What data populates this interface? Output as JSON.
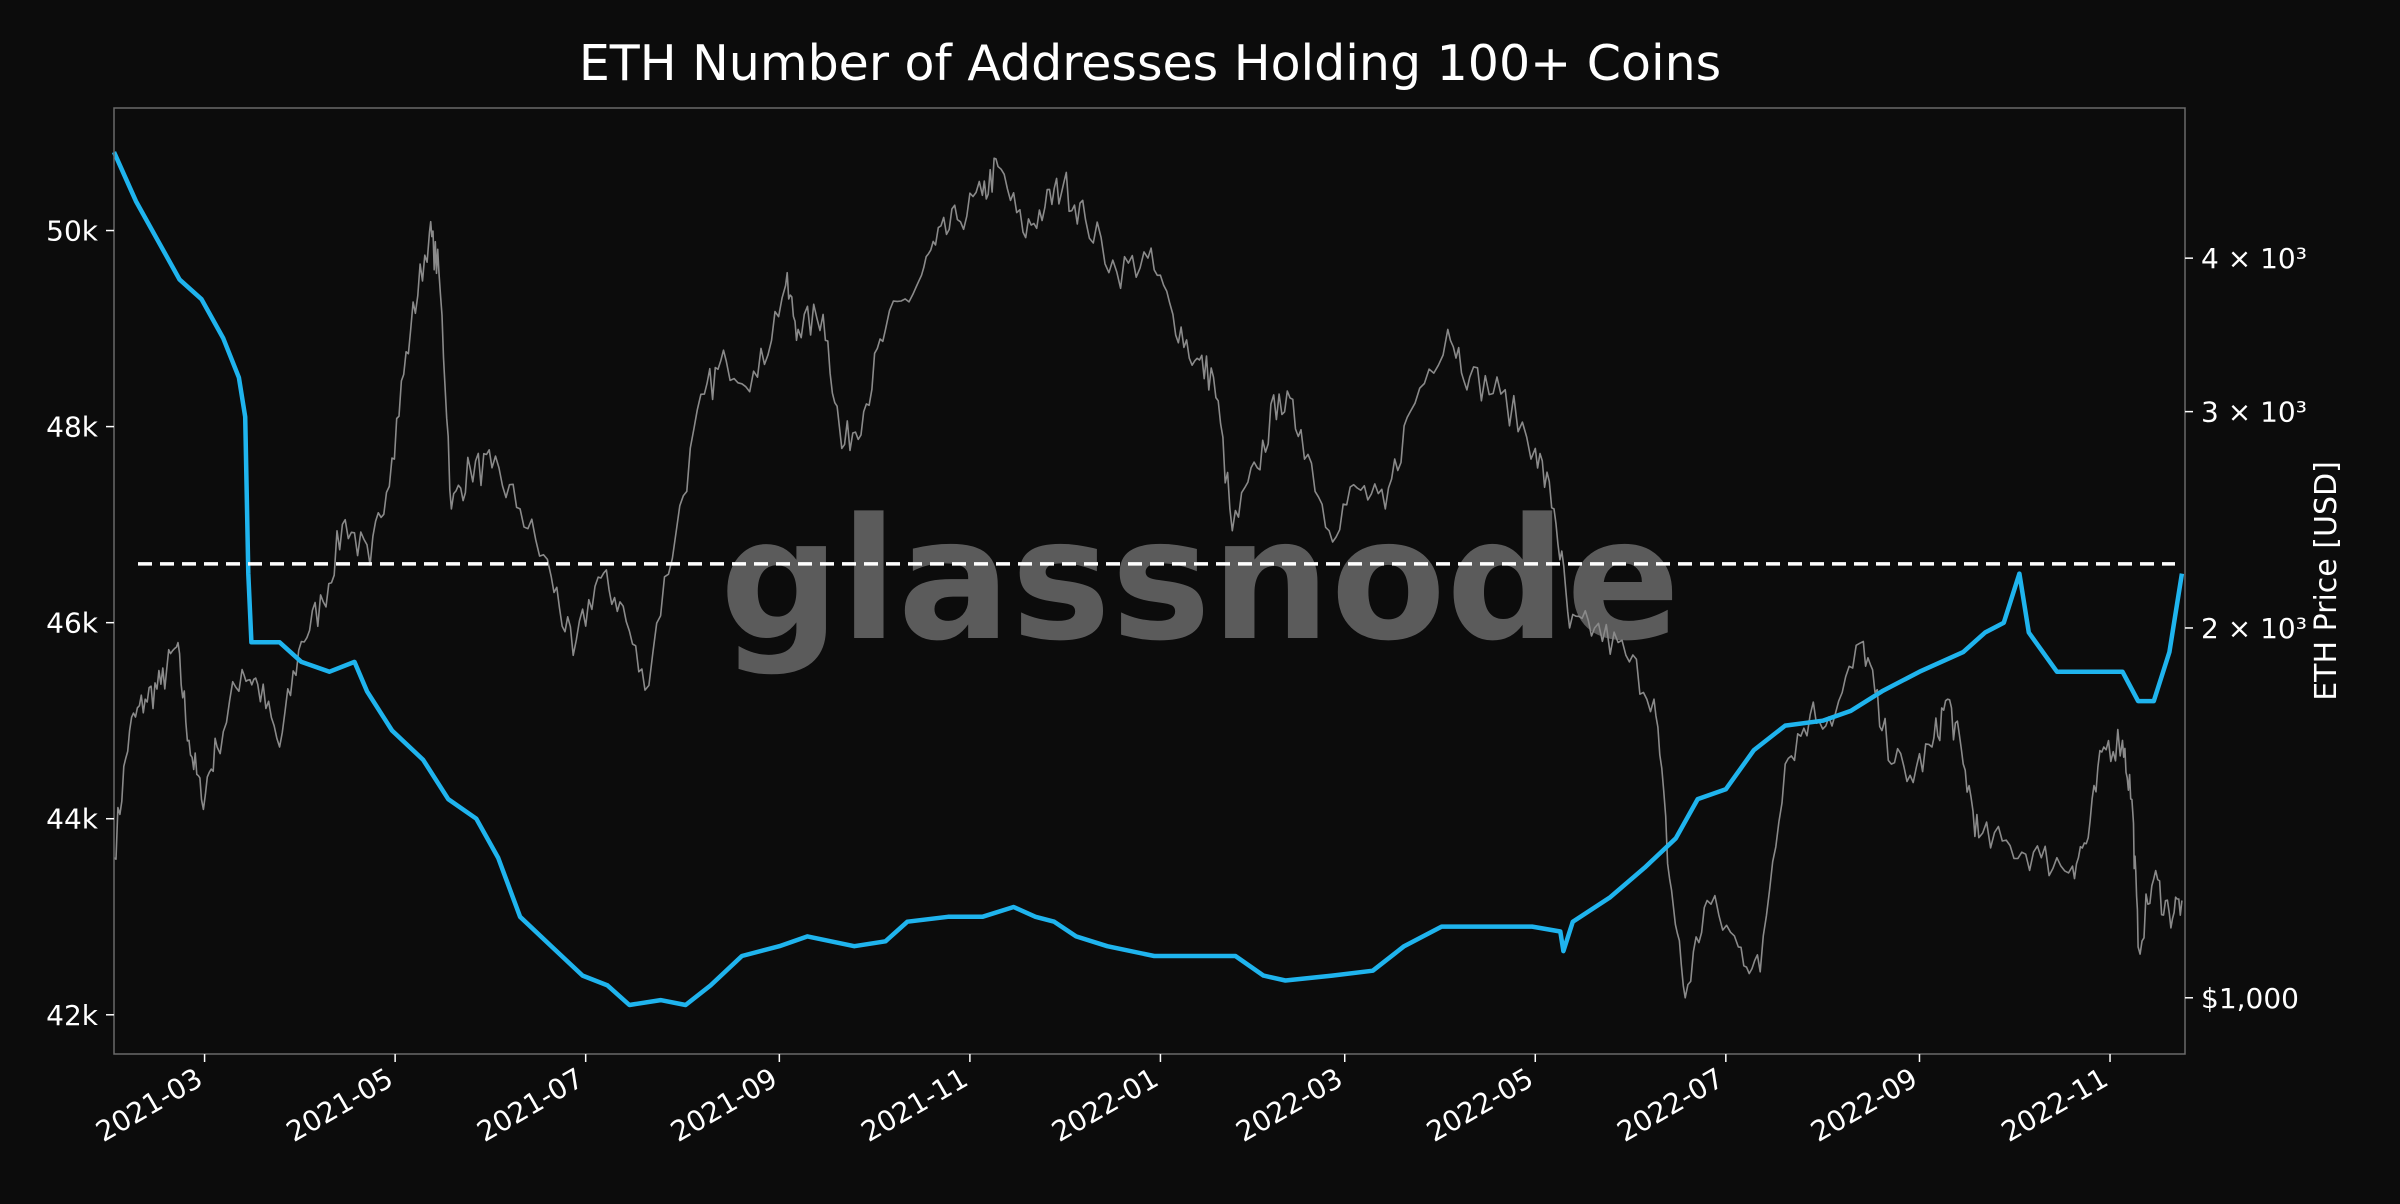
{
  "chart_data": {
    "type": "line",
    "title": "ETH Number of Addresses Holding 100+ Coins",
    "xlabel": "",
    "ylabel_left": "",
    "ylabel_right": "ETH Price [USD]",
    "watermark": "glassnode",
    "x_range": [
      "2021-01-31",
      "2022-11-25"
    ],
    "x_ticks": [
      "2021-03-01",
      "2021-05-01",
      "2021-07-01",
      "2021-09-01",
      "2021-11-01",
      "2022-01-01",
      "2022-03-01",
      "2022-05-01",
      "2022-07-01",
      "2022-09-01",
      "2022-11-01"
    ],
    "x_tick_labels": [
      "2021-03",
      "2021-05",
      "2021-07",
      "2021-09",
      "2021-11",
      "2022-01",
      "2022-03",
      "2022-05",
      "2022-07",
      "2022-09",
      "2022-11"
    ],
    "y_left_ticks": [
      42000,
      44000,
      46000,
      48000,
      50000
    ],
    "y_left_tick_labels": [
      "42k",
      "44k",
      "46k",
      "48k",
      "50k"
    ],
    "y_left_range": [
      41600,
      51250
    ],
    "y_right_scale": "log",
    "y_right_range": [
      900,
      5300
    ],
    "y_right_ticks": [
      1000,
      2000,
      3000,
      4000
    ],
    "y_right_tick_labels": [
      "$1,000",
      "2 × 10³",
      "3 × 10³",
      "4 × 10³"
    ],
    "reference_line": {
      "y": 46600,
      "style": "dashed",
      "color": "#ffffff"
    },
    "grid": false,
    "colors": {
      "background": "#0c0c0c",
      "addresses": "#1fb4ee",
      "price": "#8a8a8a",
      "frame": "#6a6a6a",
      "text": "#ffffff"
    },
    "series": [
      {
        "name": "Addresses Holding 100+ Coins",
        "axis": "left",
        "color": "#1fb4ee",
        "points": [
          [
            "2021-01-31",
            50800
          ],
          [
            "2021-02-07",
            50300
          ],
          [
            "2021-02-14",
            49900
          ],
          [
            "2021-02-21",
            49500
          ],
          [
            "2021-02-28",
            49300
          ],
          [
            "2021-03-07",
            48900
          ],
          [
            "2021-03-12",
            48500
          ],
          [
            "2021-03-14",
            48100
          ],
          [
            "2021-03-15",
            46500
          ],
          [
            "2021-03-16",
            45800
          ],
          [
            "2021-03-25",
            45800
          ],
          [
            "2021-04-01",
            45600
          ],
          [
            "2021-04-10",
            45500
          ],
          [
            "2021-04-18",
            45600
          ],
          [
            "2021-04-22",
            45300
          ],
          [
            "2021-04-30",
            44900
          ],
          [
            "2021-05-10",
            44600
          ],
          [
            "2021-05-18",
            44200
          ],
          [
            "2021-05-27",
            44000
          ],
          [
            "2021-06-03",
            43600
          ],
          [
            "2021-06-10",
            43000
          ],
          [
            "2021-06-20",
            42700
          ],
          [
            "2021-06-30",
            42400
          ],
          [
            "2021-07-08",
            42300
          ],
          [
            "2021-07-15",
            42100
          ],
          [
            "2021-07-25",
            42150
          ],
          [
            "2021-08-02",
            42100
          ],
          [
            "2021-08-10",
            42300
          ],
          [
            "2021-08-20",
            42600
          ],
          [
            "2021-09-01",
            42700
          ],
          [
            "2021-09-10",
            42800
          ],
          [
            "2021-09-25",
            42700
          ],
          [
            "2021-10-05",
            42750
          ],
          [
            "2021-10-12",
            42950
          ],
          [
            "2021-10-25",
            43000
          ],
          [
            "2021-11-05",
            43000
          ],
          [
            "2021-11-15",
            43100
          ],
          [
            "2021-11-22",
            43000
          ],
          [
            "2021-11-28",
            42950
          ],
          [
            "2021-12-05",
            42800
          ],
          [
            "2021-12-15",
            42700
          ],
          [
            "2021-12-30",
            42600
          ],
          [
            "2022-01-10",
            42600
          ],
          [
            "2022-01-25",
            42600
          ],
          [
            "2022-02-03",
            42400
          ],
          [
            "2022-02-10",
            42350
          ],
          [
            "2022-02-25",
            42400
          ],
          [
            "2022-03-10",
            42450
          ],
          [
            "2022-03-20",
            42700
          ],
          [
            "2022-04-01",
            42900
          ],
          [
            "2022-04-15",
            42900
          ],
          [
            "2022-04-30",
            42900
          ],
          [
            "2022-05-09",
            42850
          ],
          [
            "2022-05-10",
            42650
          ],
          [
            "2022-05-13",
            42950
          ],
          [
            "2022-05-25",
            43200
          ],
          [
            "2022-06-05",
            43500
          ],
          [
            "2022-06-15",
            43800
          ],
          [
            "2022-06-22",
            44200
          ],
          [
            "2022-07-01",
            44300
          ],
          [
            "2022-07-10",
            44700
          ],
          [
            "2022-07-20",
            44950
          ],
          [
            "2022-08-01",
            45000
          ],
          [
            "2022-08-10",
            45100
          ],
          [
            "2022-08-20",
            45300
          ],
          [
            "2022-09-01",
            45500
          ],
          [
            "2022-09-15",
            45700
          ],
          [
            "2022-09-22",
            45900
          ],
          [
            "2022-09-28",
            46000
          ],
          [
            "2022-10-03",
            46500
          ],
          [
            "2022-10-06",
            45900
          ],
          [
            "2022-10-15",
            45500
          ],
          [
            "2022-10-30",
            45500
          ],
          [
            "2022-11-05",
            45500
          ],
          [
            "2022-11-10",
            45200
          ],
          [
            "2022-11-15",
            45200
          ],
          [
            "2022-11-20",
            45700
          ],
          [
            "2022-11-24",
            46500
          ]
        ]
      },
      {
        "name": "ETH Price",
        "axis": "right",
        "color": "#8a8a8a",
        "points": [
          [
            "2021-01-31",
            1300
          ],
          [
            "2021-02-05",
            1650
          ],
          [
            "2021-02-10",
            1750
          ],
          [
            "2021-02-15",
            1800
          ],
          [
            "2021-02-20",
            1930
          ],
          [
            "2021-02-24",
            1620
          ],
          [
            "2021-02-28",
            1450
          ],
          [
            "2021-03-05",
            1600
          ],
          [
            "2021-03-13",
            1850
          ],
          [
            "2021-03-18",
            1800
          ],
          [
            "2021-03-25",
            1600
          ],
          [
            "2021-04-01",
            1950
          ],
          [
            "2021-04-08",
            2100
          ],
          [
            "2021-04-15",
            2450
          ],
          [
            "2021-04-23",
            2250
          ],
          [
            "2021-04-30",
            2750
          ],
          [
            "2021-05-06",
            3500
          ],
          [
            "2021-05-12",
            4200
          ],
          [
            "2021-05-15",
            3900
          ],
          [
            "2021-05-19",
            2500
          ],
          [
            "2021-05-25",
            2700
          ],
          [
            "2021-06-01",
            2700
          ],
          [
            "2021-06-10",
            2500
          ],
          [
            "2021-06-20",
            2200
          ],
          [
            "2021-06-27",
            1900
          ],
          [
            "2021-07-05",
            2200
          ],
          [
            "2021-07-12",
            2100
          ],
          [
            "2021-07-20",
            1780
          ],
          [
            "2021-07-30",
            2400
          ],
          [
            "2021-08-08",
            3100
          ],
          [
            "2021-08-15",
            3300
          ],
          [
            "2021-08-25",
            3200
          ],
          [
            "2021-09-03",
            3800
          ],
          [
            "2021-09-07",
            3500
          ],
          [
            "2021-09-15",
            3600
          ],
          [
            "2021-09-21",
            2800
          ],
          [
            "2021-09-28",
            3000
          ],
          [
            "2021-10-05",
            3500
          ],
          [
            "2021-10-15",
            3800
          ],
          [
            "2021-10-21",
            4100
          ],
          [
            "2021-10-28",
            4300
          ],
          [
            "2021-11-05",
            4500
          ],
          [
            "2021-11-10",
            4750
          ],
          [
            "2021-11-18",
            4200
          ],
          [
            "2021-11-25",
            4400
          ],
          [
            "2021-12-01",
            4600
          ],
          [
            "2021-12-08",
            4300
          ],
          [
            "2021-12-18",
            3900
          ],
          [
            "2021-12-28",
            4000
          ],
          [
            "2022-01-05",
            3600
          ],
          [
            "2022-01-12",
            3300
          ],
          [
            "2022-01-18",
            3200
          ],
          [
            "2022-01-24",
            2400
          ],
          [
            "2022-02-01",
            2700
          ],
          [
            "2022-02-08",
            3100
          ],
          [
            "2022-02-15",
            2900
          ],
          [
            "2022-02-24",
            2400
          ],
          [
            "2022-03-05",
            2600
          ],
          [
            "2022-03-14",
            2500
          ],
          [
            "2022-03-22",
            3000
          ],
          [
            "2022-04-03",
            3500
          ],
          [
            "2022-04-10",
            3200
          ],
          [
            "2022-04-20",
            3100
          ],
          [
            "2022-05-01",
            2800
          ],
          [
            "2022-05-07",
            2500
          ],
          [
            "2022-05-12",
            2000
          ],
          [
            "2022-05-20",
            2000
          ],
          [
            "2022-05-30",
            1900
          ],
          [
            "2022-06-08",
            1750
          ],
          [
            "2022-06-13",
            1250
          ],
          [
            "2022-06-18",
            1000
          ],
          [
            "2022-06-25",
            1200
          ],
          [
            "2022-07-05",
            1100
          ],
          [
            "2022-07-12",
            1050
          ],
          [
            "2022-07-20",
            1550
          ],
          [
            "2022-07-28",
            1700
          ],
          [
            "2022-08-05",
            1700
          ],
          [
            "2022-08-14",
            1950
          ],
          [
            "2022-08-20",
            1650
          ],
          [
            "2022-08-28",
            1500
          ],
          [
            "2022-09-05",
            1600
          ],
          [
            "2022-09-10",
            1750
          ],
          [
            "2022-09-15",
            1550
          ],
          [
            "2022-09-20",
            1350
          ],
          [
            "2022-09-30",
            1330
          ],
          [
            "2022-10-10",
            1300
          ],
          [
            "2022-10-20",
            1280
          ],
          [
            "2022-10-25",
            1350
          ],
          [
            "2022-10-30",
            1600
          ],
          [
            "2022-11-05",
            1620
          ],
          [
            "2022-11-08",
            1450
          ],
          [
            "2022-11-10",
            1100
          ],
          [
            "2022-11-15",
            1250
          ],
          [
            "2022-11-20",
            1170
          ],
          [
            "2022-11-24",
            1200
          ]
        ]
      }
    ]
  }
}
